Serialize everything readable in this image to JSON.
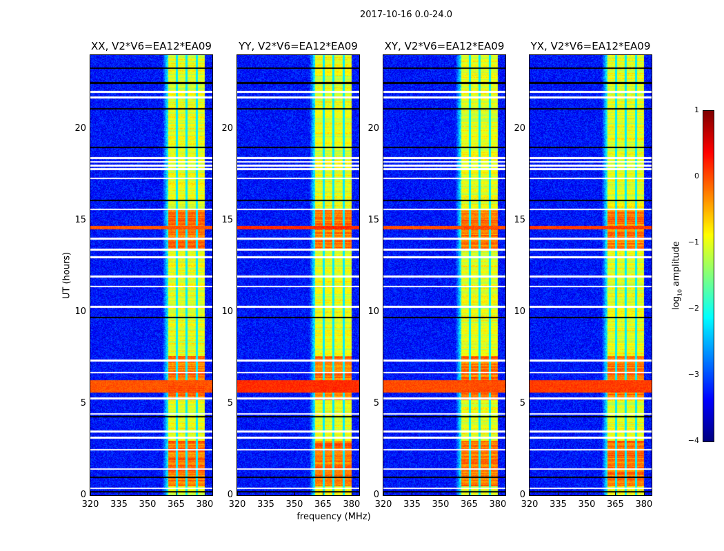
{
  "figure_title": "2017-10-16 0.0-24.0",
  "chart_data": {
    "type": "heatmap",
    "xlabel": "frequency (MHz)",
    "ylabel": "UT (hours)",
    "xlim": [
      320,
      384
    ],
    "ylim": [
      0,
      24
    ],
    "xticks": [
      "320",
      "335",
      "350",
      "365",
      "380"
    ],
    "xtick_values": [
      320,
      335,
      350,
      365,
      380
    ],
    "yticks": [
      "0",
      "5",
      "10",
      "15",
      "20"
    ],
    "ytick_values": [
      0,
      5,
      10,
      15,
      20
    ],
    "panels": [
      {
        "title": "XX, V2*V6=EA12*EA09",
        "hot_row_strength": 0.9
      },
      {
        "title": "YY, V2*V6=EA12*EA09",
        "hot_row_strength": 1.4
      },
      {
        "title": "XY, V2*V6=EA12*EA09",
        "hot_row_strength": 1.0
      },
      {
        "title": "YX, V2*V6=EA12*EA09",
        "hot_row_strength": 1.2
      }
    ],
    "features": {
      "background_log_amp": -3.3,
      "band_mhz": [
        360.5,
        380
      ],
      "band_log_amp": -1.0,
      "band_gaps_mhz": [
        365.1,
        370.2,
        375.6
      ],
      "hot_intervals_ut": [
        [
          0.5,
          3.0
        ],
        [
          5.2,
          7.6
        ],
        [
          13.4,
          15.6
        ]
      ],
      "broadband_rfi_ut": [
        [
          5.6,
          6.3
        ],
        [
          14.5,
          14.7
        ]
      ],
      "flagged_rows_ut": [
        22.0,
        21.7,
        18.4,
        18.2,
        18.0,
        17.8,
        17.3,
        15.6,
        14.0,
        13.4,
        13.0,
        11.95,
        11.4,
        10.3,
        7.35,
        6.7,
        5.3,
        4.45,
        3.5,
        3.15,
        2.5,
        1.45,
        0.4
      ],
      "dark_rows_ut": [
        23.3,
        22.5,
        21.1,
        19.0,
        16.1,
        9.7,
        4.3,
        1.0,
        0.2
      ]
    },
    "colorbar": {
      "label": "log10 amplitude",
      "label_main": "log",
      "label_sub": "10",
      "label_rest": " amplitude",
      "range": [
        -4,
        1
      ],
      "ticks": [
        "1",
        "0",
        "−1",
        "−2",
        "−3",
        "−4"
      ],
      "tick_values": [
        1,
        0,
        -1,
        -2,
        -3,
        -4
      ],
      "colormap": "jet"
    }
  }
}
